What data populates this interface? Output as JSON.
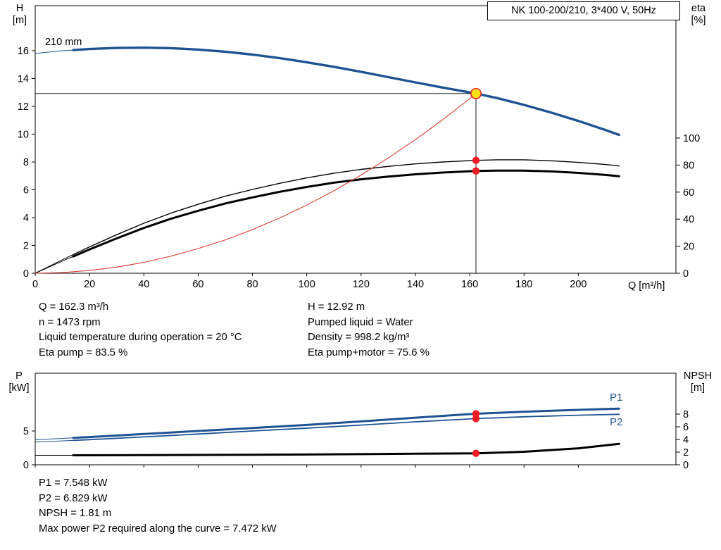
{
  "title_box": {
    "label": "NK 100-200/210, 3*400 V, 50Hz"
  },
  "colors": {
    "curve_blue": "#1e5393",
    "marker_red": "#ee1c25",
    "system_red": "#e03c31",
    "duty_yellow": "#ffe11a",
    "duty_ring_red": "#d8232a",
    "black": "#000000"
  },
  "top_chart": {
    "axis_left_name": "H",
    "axis_left_unit": "[m]",
    "axis_right_name": "eta",
    "axis_right_unit": "[%]",
    "x_axis_label": "Q [m³/h]",
    "impeller_label": "210 mm"
  },
  "bottom_chart": {
    "axis_left_name": "P",
    "axis_left_unit": "[kW]",
    "axis_right_name": "NPSH",
    "axis_right_unit": "[m]",
    "p1_label": "P1",
    "p2_label": "P2"
  },
  "results_top": {
    "left": [
      "Q = 162.3 m³/h",
      "n = 1473 rpm",
      "Liquid temperature during operation = 20 °C",
      "Eta pump = 83.5 %"
    ],
    "right": [
      "H = 12.92 m",
      "Pumped liquid = Water",
      "Density = 998.2 kg/m³",
      "Eta pump+motor = 75.6 %"
    ]
  },
  "results_bottom": {
    "lines": [
      "P1 = 7.548 kW",
      "P2 = 6.829 kW",
      "NPSH = 1.81 m",
      "Max power P2 required along the curve = 7.472 kW"
    ]
  },
  "chart_data": [
    {
      "type": "line",
      "title": "NK 100-200/210, 3*400 V, 50Hz",
      "xlabel": "Q [m³/h]",
      "ylabel_left": "H [m]",
      "ylabel_right": "eta [%]",
      "xlim": [
        0,
        236
      ],
      "ylim_left": [
        0,
        19.2
      ],
      "ylim_right": [
        0,
        198
      ],
      "grid": false,
      "legend_position": "none",
      "x_ticks": [
        0,
        20,
        40,
        60,
        80,
        100,
        120,
        140,
        160,
        180,
        200
      ],
      "y_left_ticks": [
        0,
        2,
        4,
        6,
        8,
        10,
        12,
        14,
        16
      ],
      "y_right_ticks": [
        0,
        20,
        40,
        60,
        80,
        100
      ],
      "series": [
        {
          "id": "head-curve-210mm",
          "axis": "left",
          "color": "#1e5393",
          "width": 3.4,
          "lead_thin": true,
          "x": [
            0,
            10,
            20,
            30,
            40,
            50,
            60,
            70,
            80,
            90,
            100,
            110,
            120,
            130,
            140,
            150,
            162.3,
            170,
            180,
            190,
            200,
            210,
            215
          ],
          "y": [
            15.8,
            16.0,
            16.12,
            16.2,
            16.22,
            16.18,
            16.08,
            15.93,
            15.72,
            15.47,
            15.17,
            14.84,
            14.48,
            14.1,
            13.72,
            13.35,
            12.92,
            12.6,
            12.1,
            11.55,
            10.95,
            10.3,
            9.95
          ]
        },
        {
          "id": "eta-pump-curve",
          "axis": "right",
          "color": "#000000",
          "width": 1.4,
          "lead_thin": true,
          "x": [
            0,
            10,
            20,
            30,
            40,
            50,
            60,
            70,
            80,
            90,
            100,
            110,
            120,
            130,
            140,
            150,
            162.3,
            170,
            180,
            190,
            200,
            210,
            215
          ],
          "y": [
            0,
            10,
            19.5,
            28.5,
            37,
            44.5,
            51,
            57,
            62,
            66.5,
            70.5,
            74,
            76.8,
            79,
            80.9,
            82.3,
            83.5,
            83.9,
            83.9,
            83.2,
            82.0,
            80.4,
            79.3
          ]
        },
        {
          "id": "eta-pump-motor-curve",
          "axis": "right",
          "color": "#000000",
          "width": 3,
          "lead_thin": true,
          "x": [
            0,
            10,
            20,
            30,
            40,
            50,
            60,
            70,
            80,
            90,
            100,
            110,
            120,
            130,
            140,
            150,
            162.3,
            170,
            180,
            190,
            200,
            210,
            215
          ],
          "y": [
            0,
            9,
            17.6,
            25.8,
            33.5,
            40.3,
            46.2,
            51.6,
            56.1,
            60.2,
            63.8,
            67,
            69.5,
            71.5,
            73.2,
            74.5,
            75.6,
            75.9,
            75.9,
            75.3,
            74.2,
            72.7,
            71.7
          ]
        },
        {
          "id": "system-curve",
          "axis": "left",
          "color": "#e03c31",
          "width": 1.1,
          "lead_thin": false,
          "x": [
            0,
            10,
            20,
            30,
            40,
            50,
            60,
            70,
            80,
            90,
            100,
            110,
            120,
            130,
            140,
            150,
            160,
            162.3
          ],
          "y": [
            0,
            0.05,
            0.2,
            0.44,
            0.78,
            1.23,
            1.77,
            2.4,
            3.14,
            3.97,
            4.9,
            5.93,
            7.06,
            8.29,
            9.61,
            11.04,
            12.55,
            12.92
          ]
        }
      ],
      "markers": [
        {
          "kind": "hline",
          "axis": "left",
          "q": 162.3,
          "value": 12.92
        },
        {
          "kind": "vline",
          "axis": "left",
          "q": 162.3,
          "value": 12.92
        },
        {
          "kind": "dot",
          "id": "eta-pump-dot",
          "axis": "right",
          "q": 162.3,
          "value": 83.5,
          "fill": "#ee1c25"
        },
        {
          "kind": "dot",
          "id": "eta-pump-motor-dot",
          "axis": "right",
          "q": 162.3,
          "value": 75.6,
          "fill": "#ee1c25"
        },
        {
          "kind": "duty",
          "axis": "left",
          "q": 162.3,
          "value": 12.92,
          "fill": "#ffe11a",
          "stroke": "#d8232a"
        }
      ],
      "duty_point": {
        "q": 162.3,
        "h": 12.92,
        "eta_pump": 83.5,
        "eta_pump_motor": 75.6
      }
    },
    {
      "type": "line",
      "xlabel": "Q [m³/h]",
      "ylabel_left": "P [kW]",
      "ylabel_right": "NPSH [m]",
      "xlim": [
        0,
        236
      ],
      "ylim_left": [
        0,
        13.5
      ],
      "ylim_right": [
        0,
        14.4
      ],
      "grid": false,
      "x_ticks": [
        0,
        20,
        40,
        60,
        80,
        100,
        120,
        140,
        160,
        180,
        200
      ],
      "y_left_ticks": [
        0,
        5
      ],
      "y_right_ticks": [
        0,
        2,
        4,
        6,
        8
      ],
      "series": [
        {
          "id": "p1-curve",
          "axis": "left",
          "color": "#1e5393",
          "width": 3,
          "lead_thin": true,
          "x": [
            0,
            20,
            40,
            60,
            80,
            100,
            120,
            140,
            162.3,
            180,
            200,
            215
          ],
          "y": [
            3.7,
            4.1,
            4.55,
            5.0,
            5.45,
            5.9,
            6.42,
            6.97,
            7.548,
            7.85,
            8.12,
            8.3
          ]
        },
        {
          "id": "p2-curve",
          "axis": "left",
          "color": "#1e5393",
          "width": 1.8,
          "lead_thin": true,
          "x": [
            0,
            20,
            40,
            60,
            80,
            100,
            120,
            140,
            162.3,
            180,
            200,
            215
          ],
          "y": [
            3.35,
            3.72,
            4.12,
            4.55,
            5.0,
            5.42,
            5.88,
            6.35,
            6.829,
            7.1,
            7.33,
            7.472
          ]
        },
        {
          "id": "npsh-curve",
          "axis": "right",
          "color": "#000000",
          "width": 3,
          "lead_thin": true,
          "x": [
            0,
            20,
            40,
            60,
            80,
            100,
            120,
            140,
            162.3,
            180,
            200,
            215
          ],
          "y": [
            1.5,
            1.5,
            1.52,
            1.55,
            1.58,
            1.62,
            1.68,
            1.74,
            1.81,
            2.05,
            2.6,
            3.3
          ]
        }
      ],
      "markers": [
        {
          "kind": "dot",
          "id": "p1-dot",
          "axis": "left",
          "q": 162.3,
          "value": 7.548,
          "fill": "#ee1c25"
        },
        {
          "kind": "dot",
          "id": "p2-dot",
          "axis": "left",
          "q": 162.3,
          "value": 6.829,
          "fill": "#ee1c25"
        },
        {
          "kind": "dot",
          "id": "npsh-dot",
          "axis": "right",
          "q": 162.3,
          "value": 1.81,
          "fill": "#ee1c25"
        }
      ],
      "duty_point": {
        "q": 162.3,
        "p1": 7.548,
        "p2": 6.829,
        "npsh": 1.81
      }
    }
  ]
}
